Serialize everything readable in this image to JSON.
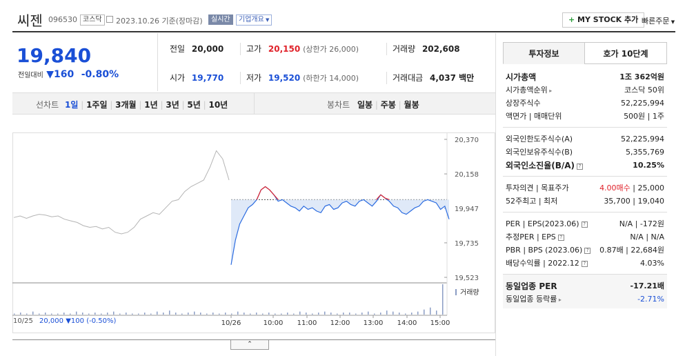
{
  "header": {
    "stock_name": "씨젠",
    "stock_code": "096530",
    "market_tag": "코스닥",
    "date_text": "2023.10.26 기준(장마감)",
    "realtime_badge": "실시간",
    "overview_dropdown": "기업개요",
    "mystock_button": "MY STOCK 추가",
    "quick_order_button": "빠른주문"
  },
  "price": {
    "current": "19,840",
    "change_label": "전일대비",
    "change_value": "160",
    "change_pct": "-0.80%"
  },
  "summary": {
    "prev_label": "전일",
    "prev_value": "20,000",
    "high_label": "고가",
    "high_value": "20,150",
    "upper_limit": "(상한가 26,000)",
    "volume_label": "거래량",
    "volume_value": "202,608",
    "open_label": "시가",
    "open_value": "19,770",
    "low_label": "저가",
    "low_value": "19,520",
    "lower_limit": "(하한가 14,000)",
    "amount_label": "거래대금",
    "amount_value": "4,037 백만"
  },
  "chart_tabs": {
    "line_label": "선차트",
    "periods": [
      "1일",
      "1주일",
      "3개월",
      "1년",
      "3년",
      "5년",
      "10년"
    ],
    "candle_label": "봉차트",
    "candles": [
      "일봉",
      "주봉",
      "월봉"
    ]
  },
  "chart_footer": {
    "prev_date": "10/25",
    "prev_price": "20,000",
    "prev_change": "100",
    "prev_pct": "(-0.50%)",
    "volume_legend": "거래량",
    "expand_icon": "chevron-up-icon"
  },
  "chart_data": {
    "type": "line",
    "y_ticks": [
      "20,370",
      "20,158",
      "19,947",
      "19,735",
      "19,523"
    ],
    "ylim": [
      19523,
      20370
    ],
    "x_ticks": [
      "10/26",
      "10:00",
      "11:00",
      "12:00",
      "13:00",
      "14:00",
      "15:00"
    ],
    "reference_price": 20000,
    "series": [
      {
        "values": [
          19890,
          19900,
          19885,
          19900,
          19910,
          19905,
          19895,
          19900,
          19880,
          19870,
          19860,
          19840,
          19830,
          19835,
          19820,
          19830,
          19800,
          19790,
          19800,
          19830,
          19880,
          19900,
          19920,
          19910,
          19950,
          19990,
          20000,
          20050,
          20080,
          20100,
          20120,
          20200,
          20300,
          20250,
          20120
        ]
      },
      {
        "values": [
          19600,
          19750,
          19850,
          19900,
          19950,
          19970,
          20000,
          20060,
          20080,
          20060,
          20030,
          19990,
          20000,
          19980,
          19960,
          19950,
          19930,
          19960,
          19940,
          19950,
          19930,
          19920,
          19960,
          19970,
          19940,
          19950,
          19980,
          19990,
          19970,
          19960,
          19990,
          20000,
          19980,
          19960,
          19990,
          20030,
          20010,
          19990,
          19960,
          19950,
          19920,
          19910,
          19930,
          19950,
          19960,
          19990,
          20000,
          19990,
          19980,
          19940,
          19960,
          19880
        ]
      }
    ],
    "volume": [
      1,
      2,
      1,
      3,
      1,
      2,
      1,
      1,
      2,
      1,
      3,
      2,
      1,
      2,
      1,
      2,
      3,
      1,
      2,
      1,
      1,
      2,
      1,
      3,
      2,
      4,
      2,
      1,
      2,
      3,
      2,
      1,
      2,
      1,
      2,
      1,
      3,
      2,
      1,
      2,
      1,
      2,
      1,
      1,
      2,
      1,
      3,
      2,
      1,
      2,
      3,
      2,
      1,
      2,
      2,
      1,
      2,
      3,
      1,
      2,
      4,
      3,
      2,
      1,
      2,
      3,
      5,
      7,
      4,
      30
    ]
  },
  "right_panel": {
    "tab_info": "투자정보",
    "tab_orderbook": "호가 10단계",
    "rows1": [
      {
        "label": "시가총액",
        "value": "1조 362억원"
      },
      {
        "label": "시가총액순위",
        "value": "코스닥 50위"
      },
      {
        "label": "상장주식수",
        "value": "52,225,994"
      },
      {
        "label": "액면가 | 매매단위",
        "value": "500원 | 1주"
      }
    ],
    "rows2": [
      {
        "label": "외국인한도주식수(A)",
        "value": "52,225,994"
      },
      {
        "label": "외국인보유주식수(B)",
        "value": "5,355,769"
      },
      {
        "label": "외국인소진율(B/A)",
        "value": "10.25%"
      }
    ],
    "opinion": {
      "label": "투자의견 | 목표주가",
      "value_red": "4.00매수",
      "value_sep": " | 25,000"
    },
    "week52": {
      "label": "52주최고 | 최저",
      "value": "35,700 | 19,040"
    },
    "rows3": [
      {
        "label": "PER | EPS(2023.06)",
        "value": "N/A | -172원"
      },
      {
        "label": "추정PER | EPS",
        "value": "N/A | N/A"
      },
      {
        "label": "PBR | BPS (2023.06)",
        "value": "0.87배 | 22,684원"
      },
      {
        "label": "배당수익률 | 2022.12",
        "value": "4.03%"
      }
    ],
    "rows4": [
      {
        "label": "동일업종 PER",
        "value": "-17.21배"
      },
      {
        "label": "동일업종 등락률",
        "value": "-2.71%"
      }
    ]
  }
}
